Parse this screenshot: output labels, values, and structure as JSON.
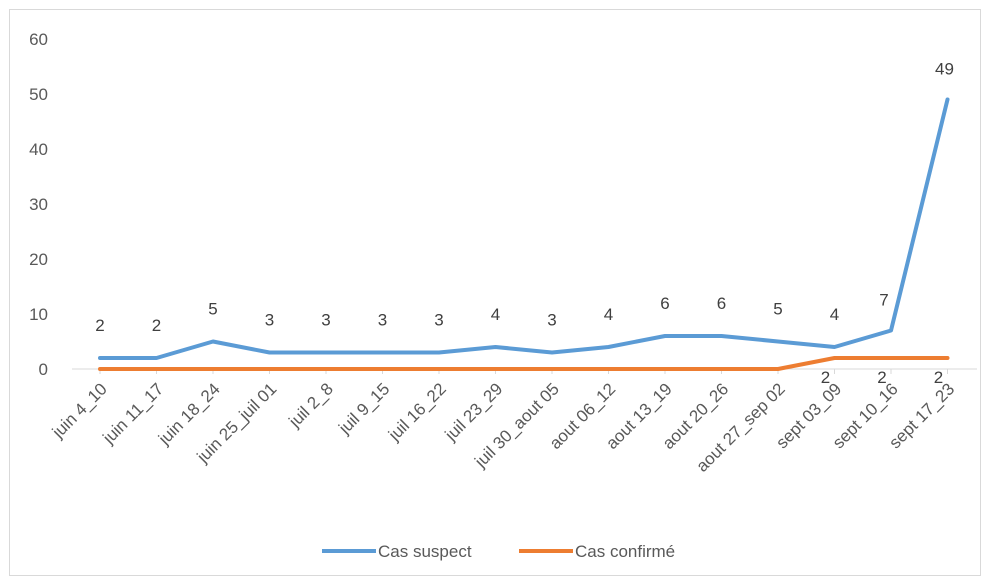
{
  "chart_data": {
    "type": "line",
    "categories": [
      "juin 4_10",
      "juin 11_17",
      "juin 18_24",
      "juin 25_juil 01",
      "juil 2_8",
      "juil 9_15",
      "juil 16_22",
      "juil 23_29",
      "juil 30_aout 05",
      "aout 06_12",
      "aout 13_19",
      "aout 20_26",
      "aout 27_sep 02",
      "sept 03_09",
      "sept 10_16",
      "sept 17_23"
    ],
    "series": [
      {
        "name": "Cas suspect",
        "color": "#5b9bd5",
        "values": [
          2,
          2,
          5,
          3,
          3,
          3,
          3,
          4,
          3,
          4,
          6,
          6,
          5,
          4,
          7,
          49
        ]
      },
      {
        "name": "Cas confirmé",
        "color": "#ed7d31",
        "values": [
          0,
          0,
          0,
          0,
          0,
          0,
          0,
          0,
          0,
          0,
          0,
          0,
          0,
          2,
          2,
          2
        ]
      }
    ],
    "yticks": [
      "0",
      "10",
      "20",
      "30",
      "40",
      "50",
      "60"
    ],
    "ylim": [
      0,
      60
    ],
    "suspect_labels": [
      "2",
      "2",
      "5",
      "3",
      "3",
      "3",
      "3",
      "4",
      "3",
      "4",
      "6",
      "6",
      "5",
      "4",
      "7",
      "49"
    ],
    "confirmed_labels": [
      "2",
      "2",
      "2"
    ],
    "legend_position": "bottom",
    "grid": false
  }
}
